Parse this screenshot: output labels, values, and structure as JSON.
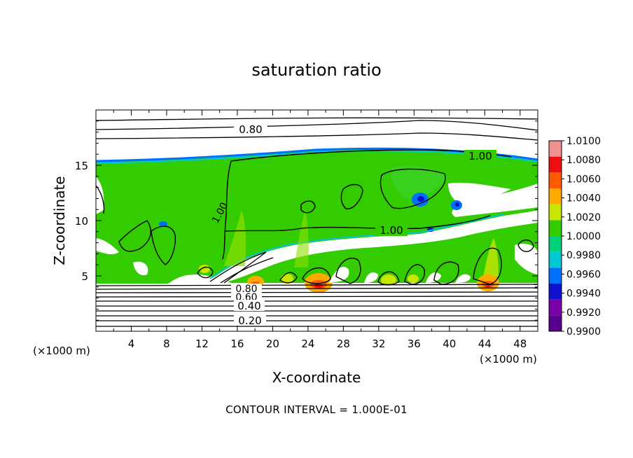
{
  "chart_data": {
    "type": "heatmap",
    "title": "saturation ratio",
    "xlabel": "X-coordinate",
    "ylabel": "Z-coordinate",
    "x_unit_left": "(×1000 m)",
    "x_unit_right": "(×1000 m)",
    "xlim": [
      0,
      50
    ],
    "ylim": [
      0,
      20
    ],
    "x_ticks": [
      4,
      8,
      12,
      16,
      20,
      24,
      28,
      32,
      36,
      40,
      44,
      48
    ],
    "y_ticks": [
      5,
      10,
      15
    ],
    "colorbar": {
      "levels": [
        "1.0100",
        "1.0080",
        "1.0060",
        "1.0040",
        "1.0020",
        "1.0000",
        "0.9980",
        "0.9960",
        "0.9940",
        "0.9920",
        "0.9900"
      ],
      "colors": [
        "#f09090",
        "#ee1010",
        "#ff5a00",
        "#ffaa00",
        "#c8e600",
        "#33cc00",
        "#00d07a",
        "#00c8d2",
        "#0070ff",
        "#1010d0",
        "#7a00a8",
        "#5a0090"
      ]
    },
    "contour_labels": [
      "0.80",
      "1.00",
      "1.00",
      "1.00",
      "0.80",
      "0.60",
      "0.40",
      "0.20"
    ],
    "contour_interval_text": "CONTOUR INTERVAL = 1.000E-01"
  }
}
